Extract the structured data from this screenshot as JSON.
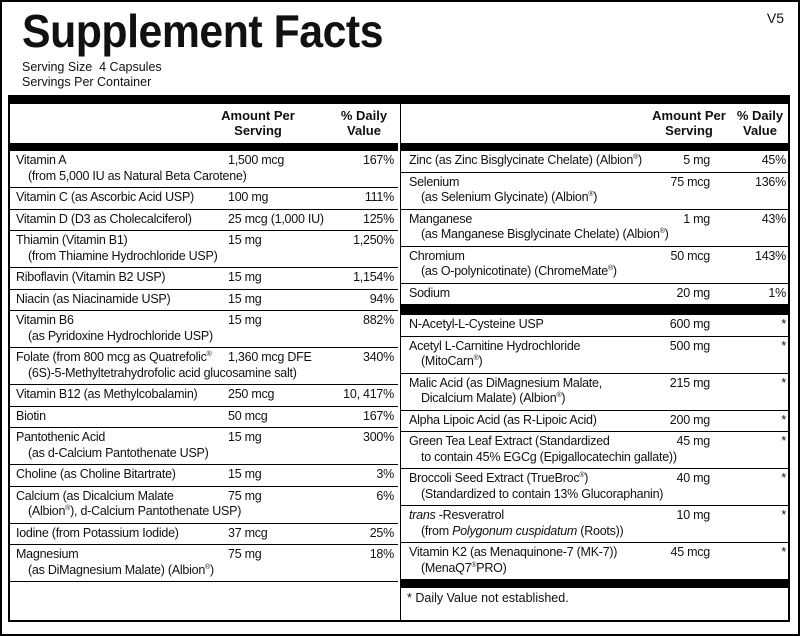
{
  "title": "Supplement Facts",
  "version": "V5",
  "serving_size": "Serving Size  4 Capsules",
  "servings_per_container": "Servings Per Container",
  "headers": {
    "amount": "Amount Per\nServing",
    "dv": "% Daily\nValue"
  },
  "left_rows": [
    {
      "name": "Vitamin A",
      "sub": "(from 5,000 IU as Natural Beta Carotene)",
      "amount": "1,500 mcg",
      "dv": "167%"
    },
    {
      "name": "Vitamin C (as Ascorbic Acid USP)",
      "amount": "100 mg",
      "dv": "111%"
    },
    {
      "name": "Vitamin D (D3 as Cholecalciferol)",
      "amount": "25 mcg (1,000 IU)",
      "dv": "125%"
    },
    {
      "name": "Thiamin (Vitamin B1)",
      "sub": "(from Thiamine Hydrochloride USP)",
      "amount": "15 mg",
      "dv": "1,250%"
    },
    {
      "name": "Riboflavin (Vitamin B2 USP)",
      "amount": "15 mg",
      "dv": "1,154%"
    },
    {
      "name": "Niacin (as Niacinamide USP)",
      "amount": "15 mg",
      "dv": "94%"
    },
    {
      "name": "Vitamin B6",
      "sub": "(as Pyridoxine Hydrochloride USP)",
      "amount": "15 mg",
      "dv": "882%"
    },
    {
      "name": "Folate (from 800 mcg as Quatrefolic®",
      "sub": "(6S)-5-Methyltetrahydrofolic acid glucosamine salt)",
      "amount": "1,360 mcg DFE",
      "dv": "340%"
    },
    {
      "name": "Vitamin B12 (as Methylcobalamin)",
      "amount": "250 mcg",
      "dv": "10, 417%"
    },
    {
      "name": "Biotin",
      "amount": "50 mcg",
      "dv": "167%"
    },
    {
      "name": "Pantothenic Acid",
      "sub": "(as d-Calcium Pantothenate USP)",
      "amount": "15 mg",
      "dv": "300%"
    },
    {
      "name": "Choline (as Choline Bitartrate)",
      "amount": "15 mg",
      "dv": "3%"
    },
    {
      "name": "Calcium (as Dicalcium Malate",
      "sub": "(Albion®), d-Calcium Pantothenate USP)",
      "amount": "75 mg",
      "dv": "6%"
    },
    {
      "name": "Iodine (from Potassium Iodide)",
      "amount": "37 mcg",
      "dv": "25%"
    },
    {
      "name": "Magnesium",
      "sub": "(as DiMagnesium Malate) (Albion®)",
      "amount": "75 mg",
      "dv": "18%"
    }
  ],
  "right_rows_a": [
    {
      "name": "Zinc (as Zinc Bisglycinate Chelate) (Albion®)",
      "amount": "5 mg",
      "dv": "45%"
    },
    {
      "name": "Selenium",
      "sub": "(as Selenium Glycinate) (Albion®)",
      "amount": "75 mcg",
      "dv": "136%"
    },
    {
      "name": "Manganese",
      "sub": "(as Manganese Bisglycinate Chelate) (Albion®)",
      "amount": "1 mg",
      "dv": "43%"
    },
    {
      "name": "Chromium",
      "sub": "(as O-polynicotinate) (ChromeMate®)",
      "amount": "50 mcg",
      "dv": "143%"
    },
    {
      "name": "Sodium",
      "amount": "20 mg",
      "dv": "1%"
    }
  ],
  "right_rows_b": [
    {
      "name": "N-Acetyl-L-Cysteine USP",
      "amount": "600 mg",
      "dv": "*"
    },
    {
      "name": "Acetyl L-Carnitine Hydrochloride",
      "sub": "(MitoCarn®)",
      "amount": "500 mg",
      "dv": "*"
    },
    {
      "name": "Malic Acid (as DiMagnesium Malate,",
      "sub": "Dicalcium Malate) (Albion®)",
      "amount": "215 mg",
      "dv": "*"
    },
    {
      "name": "Alpha Lipoic Acid (as R-Lipoic Acid)",
      "amount": "200 mg",
      "dv": "*"
    },
    {
      "name": "Green Tea Leaf Extract (Standardized",
      "sub": "to contain 45% EGCg (Epigallocatechin gallate))",
      "amount": "45 mg",
      "dv": "*"
    },
    {
      "name": "Broccoli Seed Extract (TrueBroc®)",
      "sub": "(Standardized to contain 13% Glucoraphanin)",
      "amount": "40 mg",
      "dv": "*"
    },
    {
      "name": "_trans_ -Resveratrol",
      "sub": "(from _Polygonum cuspidatum_ (Roots))",
      "amount": "10 mg",
      "dv": "*"
    },
    {
      "name": "Vitamin K2 (as Menaquinone-7 (MK-7))",
      "sub": "(MenaQ7®PRO)",
      "amount": "45 mcg",
      "dv": "*"
    }
  ],
  "footnote": "*  Daily Value not established."
}
